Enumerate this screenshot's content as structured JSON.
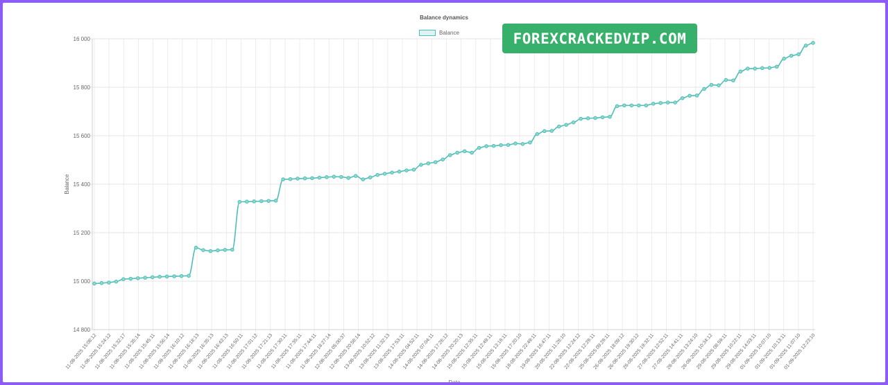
{
  "chart_data": {
    "type": "line",
    "title": "Balance dynamics",
    "xlabel": "Date",
    "ylabel": "Balance",
    "ylim": [
      14800,
      16000
    ],
    "yticks": [
      "16 000",
      "15 800",
      "15 600",
      "15 400",
      "15 200",
      "15 000",
      "14 800"
    ],
    "ytick_values": [
      16000,
      15800,
      15600,
      15400,
      15200,
      15000,
      14800
    ],
    "grid": true,
    "legend_position": "top-center",
    "line_color": "#4dbfb5",
    "xtick_labels": [
      "11-08-2025 15:08:12",
      "11-08-2025 15:24:12",
      "11-08-2025 15:32:17",
      "11-08-2025 15:35:14",
      "11-08-2025 15:45:11",
      "11-08-2025 15:56:14",
      "11-08-2025 16:10:12",
      "11-08-2025 16:18:13",
      "11-08-2025 16:35:13",
      "11-08-2025 16:43:13",
      "11-08-2025 16:50:11",
      "11-08-2025 17:01:12",
      "11-08-2025 17:21:13",
      "11-08-2025 17:30:11",
      "11-08-2025 17:35:11",
      "11-08-2025 17:44:11",
      "11-08-2025 18:27:14",
      "12-08-2025 05:00:37",
      "12-08-2025 20:58:14",
      "13-08-2025 10:52:12",
      "13-08-2025 11:32:13",
      "13-08-2025 17:53:11",
      "14-08-2025 04:52:11",
      "14-08-2025 07:04:11",
      "14-08-2025 17:26:12",
      "14-08-2025 20:20:13",
      "15-08-2025 12:35:11",
      "15-08-2025 12:49:11",
      "15-08-2025 13:18:11",
      "15-08-2025 17:20:10",
      "18-08-2025 22:49:11",
      "19-08-2025 16:47:11",
      "20-08-2025 11:28:10",
      "22-08-2025 12:24:12",
      "22-08-2025 12:28:11",
      "25-08-2025 09:28:11",
      "26-08-2025 18:09:12",
      "26-08-2025 19:30:12",
      "26-08-2025 19:32:11",
      "27-08-2025 12:52:11",
      "27-08-2025 14:41:11",
      "28-08-2025 13:24:10",
      "28-08-2025 10:34:12",
      "29-08-2025 08:59:11",
      "29-08-2025 10:22:11",
      "29-08-2025 14:03:11",
      "01-09-2025 10:07:10",
      "01-09-2025 10:13:11",
      "01-09-2025 11:07:10",
      "01-09-2025 12:23:10"
    ],
    "series": [
      {
        "name": "Balance",
        "values": [
          14990,
          14992,
          14994,
          14998,
          15008,
          15010,
          15012,
          15014,
          15016,
          15018,
          15019,
          15020,
          15021,
          15022,
          15138,
          15128,
          15124,
          15127,
          15129,
          15130,
          15327,
          15328,
          15329,
          15330,
          15331,
          15332,
          15420,
          15421,
          15423,
          15424,
          15425,
          15427,
          15429,
          15431,
          15430,
          15426,
          15434,
          15420,
          15428,
          15438,
          15443,
          15448,
          15452,
          15457,
          15460,
          15480,
          15486,
          15491,
          15502,
          15520,
          15530,
          15536,
          15530,
          15550,
          15557,
          15558,
          15561,
          15562,
          15568,
          15566,
          15572,
          15607,
          15619,
          15620,
          15638,
          15645,
          15655,
          15670,
          15672,
          15673,
          15676,
          15678,
          15722,
          15725,
          15725,
          15725,
          15725,
          15732,
          15735,
          15737,
          15737,
          15755,
          15765,
          15766,
          15793,
          15810,
          15808,
          15830,
          15828,
          15865,
          15877,
          15877,
          15879,
          15880,
          15885,
          15918,
          15930,
          15936,
          15972,
          15983
        ]
      }
    ]
  },
  "watermark": "FOREXCRACKEDVIP.COM"
}
